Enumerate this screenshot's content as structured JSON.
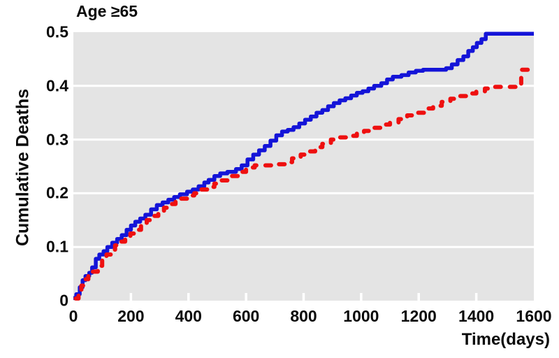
{
  "title": "Age ≥65",
  "colors": {
    "plot_background": "#e4e4e4",
    "gridline": "#ffffff",
    "blue_series": "#1414d8",
    "red_series": "#ee1010",
    "text": "#0a0a0a",
    "page_background": "#ffffff"
  },
  "chart_data": {
    "type": "line",
    "subtype": "step-cumulative-incidence",
    "title": "Age ≥65",
    "xlabel": "Time(days)",
    "ylabel": "Cumulative Deaths",
    "xlim": [
      0,
      1600
    ],
    "ylim": [
      0,
      0.5
    ],
    "x_ticks": [
      0,
      200,
      400,
      600,
      800,
      1000,
      1200,
      1400,
      1600
    ],
    "y_ticks": [
      0,
      0.1,
      0.2,
      0.3,
      0.4,
      0.5
    ],
    "y_tick_labels": [
      "0",
      "0.1",
      "0.2",
      "0.3",
      "0.4",
      "0.5"
    ],
    "x_tick_labels": [
      "0",
      "200",
      "400",
      "600",
      "800",
      "1000",
      "1200",
      "1400",
      "1600"
    ],
    "grid": "horizontal white gridlines on gray panel",
    "legend": "none",
    "series": [
      {
        "name": "blue-solid-curve",
        "style": "solid",
        "color": "#1414d8",
        "points": [
          [
            0,
            0.005
          ],
          [
            10,
            0.012
          ],
          [
            22,
            0.025
          ],
          [
            32,
            0.038
          ],
          [
            42,
            0.046
          ],
          [
            55,
            0.052
          ],
          [
            65,
            0.062
          ],
          [
            78,
            0.078
          ],
          [
            90,
            0.086
          ],
          [
            105,
            0.092
          ],
          [
            118,
            0.1
          ],
          [
            135,
            0.108
          ],
          [
            152,
            0.115
          ],
          [
            168,
            0.122
          ],
          [
            185,
            0.132
          ],
          [
            200,
            0.14
          ],
          [
            215,
            0.147
          ],
          [
            232,
            0.153
          ],
          [
            250,
            0.16
          ],
          [
            270,
            0.17
          ],
          [
            290,
            0.178
          ],
          [
            310,
            0.183
          ],
          [
            330,
            0.188
          ],
          [
            350,
            0.193
          ],
          [
            370,
            0.198
          ],
          [
            395,
            0.203
          ],
          [
            415,
            0.207
          ],
          [
            435,
            0.213
          ],
          [
            455,
            0.22
          ],
          [
            470,
            0.225
          ],
          [
            490,
            0.232
          ],
          [
            510,
            0.237
          ],
          [
            535,
            0.24
          ],
          [
            565,
            0.245
          ],
          [
            585,
            0.252
          ],
          [
            605,
            0.263
          ],
          [
            625,
            0.272
          ],
          [
            645,
            0.28
          ],
          [
            665,
            0.288
          ],
          [
            685,
            0.298
          ],
          [
            705,
            0.308
          ],
          [
            725,
            0.315
          ],
          [
            745,
            0.318
          ],
          [
            765,
            0.323
          ],
          [
            785,
            0.33
          ],
          [
            805,
            0.337
          ],
          [
            825,
            0.343
          ],
          [
            845,
            0.35
          ],
          [
            865,
            0.355
          ],
          [
            885,
            0.362
          ],
          [
            905,
            0.368
          ],
          [
            925,
            0.373
          ],
          [
            945,
            0.377
          ],
          [
            965,
            0.382
          ],
          [
            985,
            0.387
          ],
          [
            1005,
            0.39
          ],
          [
            1025,
            0.395
          ],
          [
            1045,
            0.4
          ],
          [
            1070,
            0.405
          ],
          [
            1090,
            0.412
          ],
          [
            1110,
            0.417
          ],
          [
            1140,
            0.42
          ],
          [
            1165,
            0.425
          ],
          [
            1190,
            0.428
          ],
          [
            1215,
            0.43
          ],
          [
            1295,
            0.433
          ],
          [
            1315,
            0.44
          ],
          [
            1335,
            0.448
          ],
          [
            1355,
            0.455
          ],
          [
            1372,
            0.465
          ],
          [
            1388,
            0.472
          ],
          [
            1402,
            0.48
          ],
          [
            1418,
            0.487
          ],
          [
            1433,
            0.497
          ],
          [
            1600,
            0.497
          ]
        ]
      },
      {
        "name": "red-dashed-curve",
        "style": "dashed",
        "color": "#ee1010",
        "points": [
          [
            8,
            0.004
          ],
          [
            18,
            0.015
          ],
          [
            28,
            0.028
          ],
          [
            38,
            0.04
          ],
          [
            52,
            0.046
          ],
          [
            68,
            0.054
          ],
          [
            85,
            0.065
          ],
          [
            100,
            0.075
          ],
          [
            115,
            0.086
          ],
          [
            130,
            0.095
          ],
          [
            145,
            0.103
          ],
          [
            162,
            0.11
          ],
          [
            180,
            0.118
          ],
          [
            198,
            0.125
          ],
          [
            215,
            0.132
          ],
          [
            235,
            0.14
          ],
          [
            255,
            0.15
          ],
          [
            275,
            0.158
          ],
          [
            295,
            0.166
          ],
          [
            315,
            0.173
          ],
          [
            335,
            0.18
          ],
          [
            355,
            0.186
          ],
          [
            375,
            0.19
          ],
          [
            400,
            0.196
          ],
          [
            420,
            0.2
          ],
          [
            445,
            0.207
          ],
          [
            465,
            0.212
          ],
          [
            490,
            0.218
          ],
          [
            515,
            0.224
          ],
          [
            545,
            0.232
          ],
          [
            575,
            0.24
          ],
          [
            600,
            0.248
          ],
          [
            630,
            0.252
          ],
          [
            700,
            0.254
          ],
          [
            740,
            0.258
          ],
          [
            760,
            0.265
          ],
          [
            790,
            0.272
          ],
          [
            815,
            0.278
          ],
          [
            840,
            0.286
          ],
          [
            865,
            0.292
          ],
          [
            895,
            0.3
          ],
          [
            925,
            0.304
          ],
          [
            955,
            0.307
          ],
          [
            985,
            0.312
          ],
          [
            1010,
            0.316
          ],
          [
            1040,
            0.322
          ],
          [
            1070,
            0.328
          ],
          [
            1100,
            0.332
          ],
          [
            1130,
            0.338
          ],
          [
            1160,
            0.345
          ],
          [
            1190,
            0.35
          ],
          [
            1220,
            0.358
          ],
          [
            1250,
            0.363
          ],
          [
            1280,
            0.37
          ],
          [
            1310,
            0.376
          ],
          [
            1340,
            0.381
          ],
          [
            1370,
            0.386
          ],
          [
            1400,
            0.39
          ],
          [
            1430,
            0.395
          ],
          [
            1460,
            0.398
          ],
          [
            1548,
            0.401
          ],
          [
            1556,
            0.43
          ],
          [
            1600,
            0.432
          ]
        ]
      }
    ]
  }
}
